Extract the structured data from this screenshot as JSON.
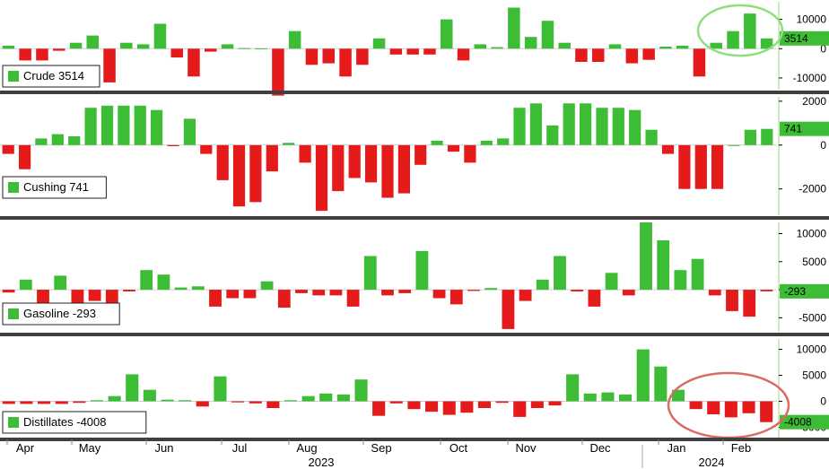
{
  "chart_data": [
    {
      "type": "bar",
      "series": [
        {
          "name": "Crude",
          "legend_value": "3514"
        }
      ],
      "latest_label": "3514",
      "ylim": [
        -14000,
        16000
      ],
      "yticks": [
        10000,
        0,
        -10000
      ],
      "ytick_labels": [
        "10000",
        "0",
        "-10000"
      ],
      "values": [
        1000,
        -4000,
        -4000,
        -700,
        2000,
        4500,
        -11500,
        2000,
        1500,
        8500,
        -3000,
        -9500,
        -1000,
        1500,
        200,
        100,
        -16000,
        6000,
        -5500,
        -5000,
        -9500,
        -5500,
        3500,
        -2000,
        -2000,
        -2000,
        10000,
        -4000,
        1500,
        500,
        14000,
        4000,
        9500,
        2000,
        -4500,
        -4500,
        1500,
        -5000,
        -3800,
        700,
        1000,
        -9500,
        2000,
        6000,
        12000,
        3514
      ],
      "highlight": "green-circle"
    },
    {
      "type": "bar",
      "series": [
        {
          "name": "Cushing",
          "legend_value": "741"
        }
      ],
      "latest_label": "741",
      "ylim": [
        -3200,
        2200
      ],
      "yticks": [
        2000,
        0,
        -2000
      ],
      "ytick_labels": [
        "2000",
        "0",
        "-2000"
      ],
      "values": [
        -400,
        -1100,
        300,
        500,
        400,
        1700,
        1800,
        1800,
        1800,
        1600,
        -50,
        1200,
        -400,
        -1600,
        -2800,
        -2600,
        -1200,
        100,
        -800,
        -3000,
        -2100,
        -1500,
        -1700,
        -2400,
        -2200,
        -900,
        200,
        -300,
        -800,
        200,
        300,
        1700,
        1900,
        900,
        1900,
        1900,
        1700,
        1700,
        1600,
        700,
        -400,
        -2000,
        -2000,
        -2000,
        0,
        700,
        741
      ]
    },
    {
      "type": "bar",
      "series": [
        {
          "name": "Gasoline",
          "legend_value": "-293"
        }
      ],
      "latest_label": "-293",
      "ylim": [
        -7500,
        12000
      ],
      "yticks": [
        10000,
        5000,
        0,
        -5000
      ],
      "ytick_labels": [
        "10000",
        "5000",
        "0",
        "-5000"
      ],
      "values": [
        -500,
        1800,
        -3000,
        2500,
        -3300,
        -2000,
        -2500,
        -300,
        3500,
        2700,
        400,
        600,
        -3000,
        -1500,
        -1500,
        1500,
        -3200,
        -600,
        -1000,
        -1000,
        -3000,
        6000,
        -1000,
        -600,
        6900,
        -1500,
        -2600,
        -200,
        300,
        -7000,
        -2000,
        1800,
        6000,
        -300,
        -3000,
        3000,
        -1000,
        12000,
        8800,
        3500,
        5500,
        -1000,
        -3800,
        -4800,
        -293
      ]
    },
    {
      "type": "bar",
      "series": [
        {
          "name": "Distillates",
          "legend_value": "-4008"
        }
      ],
      "latest_label": "-4008",
      "ylim": [
        -7000,
        12000
      ],
      "yticks": [
        10000,
        5000,
        0,
        -5000
      ],
      "ytick_labels": [
        "10000",
        "5000",
        "0",
        "-5000"
      ],
      "values": [
        -500,
        -500,
        -500,
        -500,
        -300,
        200,
        1000,
        5200,
        2200,
        300,
        200,
        -1000,
        4800,
        -200,
        -400,
        -1300,
        200,
        1000,
        1500,
        1300,
        4200,
        -2800,
        -400,
        -1500,
        -2000,
        -2600,
        -2200,
        -1300,
        -300,
        -3000,
        -1300,
        -800,
        5200,
        1500,
        1700,
        1300,
        10000,
        6700,
        2200,
        -1500,
        -2500,
        -3100,
        -2300,
        -4008
      ],
      "highlight": "red-circle"
    }
  ],
  "x_axis": {
    "months": [
      "Apr",
      "May",
      "Jun",
      "Jul",
      "Aug",
      "Sep",
      "Oct",
      "Nov",
      "Dec",
      "Jan",
      "Feb"
    ],
    "years": [
      "2023",
      "2024"
    ]
  },
  "colors": {
    "positive": "#3dbc36",
    "negative": "#e51a1a",
    "legend_square": "#3dbc36",
    "circle_green": "#8fe07c",
    "circle_red": "#d96a64",
    "divider": "#3f3f3f",
    "badge_green": "#3dbc36",
    "vline": "#9fd97f"
  }
}
